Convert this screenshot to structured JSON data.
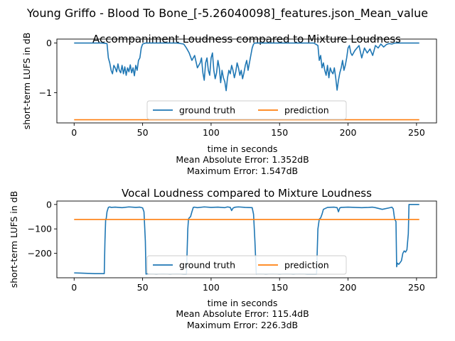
{
  "suptitle": "Young Griffo - Blood To Bone_[-5.26040098]_features.json_Mean_value",
  "colors": {
    "ground_truth": "#1f77b4",
    "prediction": "#ff7f0e"
  },
  "chart_data": [
    {
      "type": "line",
      "title": "Accompaniment Loudness compared to Mixture Loudness",
      "xlabel": "time in seconds",
      "ylabel": "short-term LUFS in dB",
      "xlim": [
        -12.6,
        264.6
      ],
      "ylim": [
        -1.61,
        0.08
      ],
      "xticks": [
        0,
        50,
        100,
        150,
        200,
        250
      ],
      "yticks": [
        0,
        -1
      ],
      "grid": false,
      "legend": {
        "placement": "lower center",
        "ncol": 2,
        "entries": [
          "ground truth",
          "prediction"
        ]
      },
      "metrics": [
        "Mean Absolute Error: 1.352dB",
        "Maximum Error: 1.547dB"
      ],
      "series": [
        {
          "name": "ground truth",
          "x": [
            0,
            5,
            10,
            15,
            20,
            24,
            25,
            26,
            27,
            28,
            29,
            30,
            31,
            32,
            33,
            34,
            35,
            36,
            37,
            38,
            39,
            40,
            41,
            42,
            43,
            44,
            45,
            46,
            47,
            48,
            49,
            50,
            52,
            55,
            60,
            65,
            70,
            75,
            80,
            82,
            84,
            86,
            88,
            90,
            92,
            93,
            94,
            95,
            96,
            97,
            98,
            99,
            100,
            101,
            102,
            103,
            104,
            105,
            106,
            107,
            108,
            109,
            110,
            111,
            112,
            113,
            114,
            115,
            116,
            117,
            118,
            119,
            120,
            121,
            122,
            123,
            124,
            125,
            126,
            127,
            128,
            129,
            130,
            131,
            132,
            133,
            135,
            140,
            145,
            150,
            155,
            160,
            165,
            170,
            175,
            178,
            179,
            180,
            181,
            182,
            183,
            184,
            185,
            186,
            187,
            188,
            189,
            190,
            191,
            192,
            193,
            194,
            195,
            196,
            197,
            198,
            199,
            200,
            201,
            202,
            203,
            205,
            208,
            210,
            212,
            214,
            216,
            218,
            220,
            222,
            224,
            226,
            228,
            230,
            232,
            234,
            236,
            238,
            240,
            245,
            250,
            252
          ],
          "values": [
            0,
            0,
            0,
            0,
            0,
            -0.01,
            -0.3,
            -0.4,
            -0.55,
            -0.62,
            -0.45,
            -0.5,
            -0.58,
            -0.42,
            -0.55,
            -0.6,
            -0.45,
            -0.62,
            -0.48,
            -0.65,
            -0.5,
            -0.58,
            -0.44,
            -0.6,
            -0.5,
            -0.66,
            -0.45,
            -0.55,
            -0.35,
            -0.3,
            -0.1,
            -0.02,
            0,
            0,
            0,
            0,
            0,
            0,
            -0.02,
            -0.1,
            -0.2,
            -0.35,
            -0.25,
            -0.5,
            -0.4,
            -0.3,
            -0.6,
            -0.75,
            -0.4,
            -0.3,
            -0.55,
            -0.65,
            -0.3,
            -0.2,
            -0.55,
            -0.72,
            -0.6,
            -0.35,
            -0.5,
            -0.8,
            -0.55,
            -0.7,
            -0.78,
            -0.96,
            -0.7,
            -0.55,
            -0.62,
            -0.45,
            -0.55,
            -0.7,
            -0.58,
            -0.4,
            -0.5,
            -0.65,
            -0.55,
            -0.72,
            -0.6,
            -0.45,
            -0.35,
            -0.55,
            -0.4,
            -0.25,
            -0.1,
            -0.02,
            0,
            0,
            0,
            0,
            0,
            0,
            0,
            0,
            0,
            0,
            0,
            -0.05,
            -0.35,
            -0.25,
            -0.5,
            -0.4,
            -0.55,
            -0.65,
            -0.45,
            -0.7,
            -0.5,
            -0.58,
            -0.62,
            -0.5,
            -0.7,
            -0.95,
            -0.75,
            -0.6,
            -0.5,
            -0.35,
            -0.55,
            -0.45,
            -0.3,
            -0.1,
            -0.05,
            -0.2,
            -0.25,
            -0.15,
            -0.05,
            -0.3,
            -0.1,
            -0.2,
            -0.12,
            -0.25,
            -0.05,
            -0.1,
            -0.02,
            -0.08,
            -0.03,
            -0.01,
            -0.02,
            0,
            0,
            0,
            0,
            0,
            0,
            0
          ]
        },
        {
          "name": "prediction",
          "x": [
            0,
            252
          ],
          "values": [
            -1.547,
            -1.547
          ]
        }
      ]
    },
    {
      "type": "line",
      "title": "Vocal Loudness compared to Mixture Loudness",
      "xlabel": "time in seconds",
      "ylabel": "short-term LUFS in dB",
      "xlim": [
        -12.6,
        264.6
      ],
      "ylim": [
        -300,
        14
      ],
      "xticks": [
        0,
        50,
        100,
        150,
        200,
        250
      ],
      "yticks": [
        0,
        -100,
        -200
      ],
      "grid": false,
      "legend": {
        "placement": "lower center",
        "ncol": 2,
        "entries": [
          "ground truth",
          "prediction"
        ]
      },
      "metrics": [
        "Mean Absolute Error: 115.4dB",
        "Maximum Error: 226.3dB"
      ],
      "series": [
        {
          "name": "ground truth",
          "x": [
            0,
            5,
            10,
            15,
            20,
            22,
            22.5,
            23,
            23.5,
            24,
            25,
            26,
            27,
            30,
            35,
            40,
            45,
            48,
            50,
            51,
            52,
            52.5,
            53,
            55,
            60,
            65,
            70,
            75,
            80,
            82,
            83,
            83.5,
            84,
            85,
            86,
            87,
            88,
            90,
            95,
            100,
            105,
            110,
            112,
            114,
            115,
            116,
            117,
            118,
            120,
            125,
            130,
            131,
            132,
            133,
            135,
            140,
            145,
            150,
            155,
            160,
            165,
            170,
            175,
            177,
            178,
            179,
            180,
            181,
            182,
            185,
            190,
            192,
            193,
            194,
            195,
            200,
            210,
            215,
            218,
            220,
            225,
            230,
            232,
            233,
            234,
            235,
            235.5,
            236,
            237,
            238,
            239,
            240,
            241,
            242,
            243,
            244,
            244.5,
            245,
            250,
            252
          ],
          "values": [
            -280,
            -281,
            -282,
            -283,
            -283,
            -283,
            -150,
            -65,
            -55,
            -30,
            -12,
            -10,
            -12,
            -11,
            -13,
            -10,
            -12,
            -11,
            -14,
            -30,
            -150,
            -285,
            -284,
            -284,
            -285,
            -284,
            -285,
            -284,
            -285,
            -285,
            -100,
            -60,
            -55,
            -50,
            -30,
            -12,
            -11,
            -13,
            -10,
            -12,
            -11,
            -13,
            -10,
            -12,
            -25,
            -15,
            -12,
            -11,
            -10,
            -12,
            -13,
            -40,
            -150,
            -285,
            -284,
            -285,
            -284,
            -285,
            -284,
            -285,
            -284,
            -285,
            -285,
            -285,
            -100,
            -60,
            -55,
            -40,
            -20,
            -12,
            -11,
            -13,
            -30,
            -14,
            -12,
            -11,
            -13,
            -12,
            -11,
            -13,
            -20,
            -14,
            -11,
            -18,
            -60,
            -70,
            -255,
            -240,
            -245,
            -238,
            -230,
            -200,
            -190,
            -195,
            -185,
            -120,
            0,
            0,
            0,
            0
          ]
        },
        {
          "name": "prediction",
          "x": [
            0,
            252
          ],
          "values": [
            -61.5,
            -61.5
          ]
        }
      ]
    }
  ]
}
